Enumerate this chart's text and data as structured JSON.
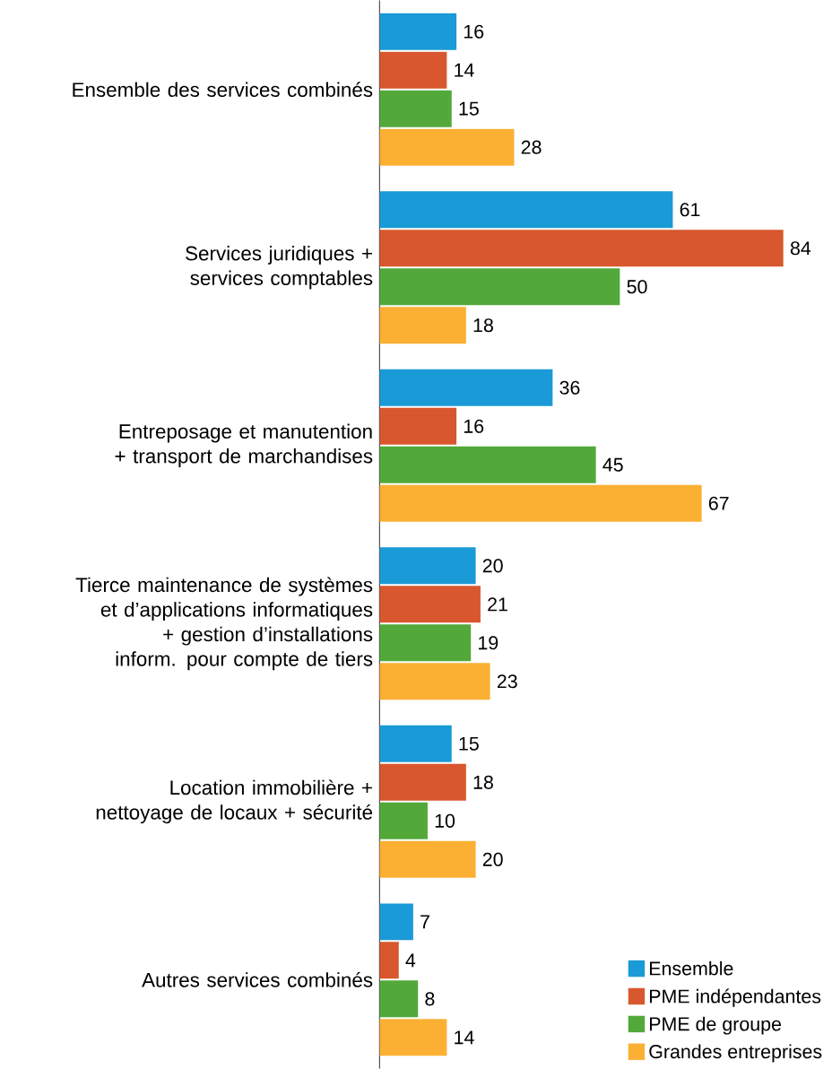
{
  "chart_data": {
    "type": "bar",
    "orientation": "horizontal",
    "categories": [
      "Ensemble des services combinés",
      "Services juridiques + services comptables",
      "Entreposage et manutention + transport de marchandises",
      "Tierce maintenance de systèmes et d’applications informatiques + gestion d’installations inform. pour compte de tiers",
      "Location immobilière + nettoyage de locaux + sécurité",
      "Autres services combinés"
    ],
    "series": [
      {
        "name": "Ensemble",
        "color": "#1a9ad6",
        "values": [
          16,
          61,
          36,
          20,
          15,
          7
        ]
      },
      {
        "name": "PME indépendantes",
        "color": "#d9572e",
        "values": [
          14,
          84,
          16,
          21,
          18,
          4
        ]
      },
      {
        "name": "PME de groupe",
        "color": "#53a83a",
        "values": [
          15,
          50,
          45,
          19,
          10,
          8
        ]
      },
      {
        "name": "Grandes entreprises",
        "color": "#fbb034",
        "values": [
          28,
          18,
          67,
          23,
          20,
          14
        ]
      }
    ],
    "data_labels": true,
    "legend": "bottom right"
  }
}
